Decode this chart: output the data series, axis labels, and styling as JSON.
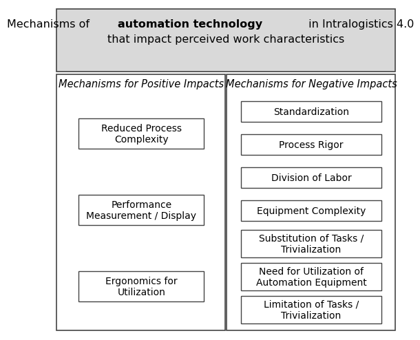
{
  "title_part1": "Mechanisms of ",
  "title_bold": "automation technology",
  "title_part3": " in Intralogistics 4.0",
  "title_line2": "that impact perceived work characteristics",
  "header_bg": "#d9d9d9",
  "left_header": "Mechanisms for Positive Impacts",
  "right_header": "Mechanisms for Negative Impacts",
  "positive_items": [
    "Reduced Process\nComplexity",
    "Performance\nMeasurement / Display",
    "Ergonomics for\nUtilization"
  ],
  "negative_items": [
    "Standardization",
    "Process Rigor",
    "Division of Labor",
    "Equipment Complexity",
    "Substitution of Tasks /\nTrivialization",
    "Need for Utilization of\nAutomation Equipment",
    "Limitation of Tasks /\nTrivialization"
  ],
  "box_bg": "#ffffff",
  "box_edge": "#444444",
  "outer_edge": "#444444",
  "fig_bg": "#ffffff",
  "title_fontsize": 11.5,
  "header_fontsize": 10.5,
  "item_fontsize": 10
}
